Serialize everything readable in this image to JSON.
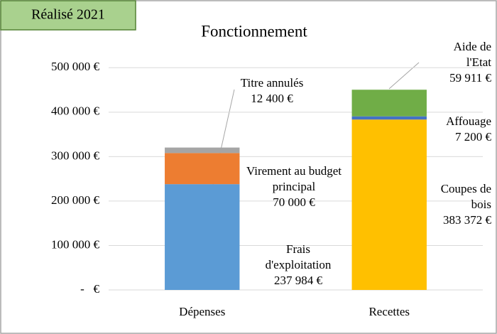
{
  "chart_data": {
    "type": "bar",
    "stacked": true,
    "badge": "Réalisé 2021",
    "title": "Fonctionnement",
    "categories": [
      "Dépenses",
      "Recettes"
    ],
    "series": [
      {
        "name": "Frais d'exploitation",
        "color": "#5b9bd5",
        "values": [
          237984,
          null
        ],
        "value_labels": [
          "237 984 €",
          null
        ]
      },
      {
        "name": "Virement au budget principal",
        "color": "#ed7d31",
        "values": [
          70000,
          null
        ],
        "value_labels": [
          "70 000 €",
          null
        ]
      },
      {
        "name": "Titre annulés",
        "color": "#a5a5a5",
        "values": [
          12400,
          null
        ],
        "value_labels": [
          "12 400 €",
          null
        ]
      },
      {
        "name": "Coupes de bois",
        "color": "#ffc000",
        "values": [
          null,
          383372
        ],
        "value_labels": [
          null,
          "383 372 €"
        ]
      },
      {
        "name": "Affouage",
        "color": "#4472c4",
        "values": [
          null,
          7200
        ],
        "value_labels": [
          null,
          "7 200 €"
        ]
      },
      {
        "name": "Aide de l'Etat",
        "color": "#70ad47",
        "values": [
          null,
          59911
        ],
        "value_labels": [
          null,
          "59 911 €"
        ]
      }
    ],
    "ylim": [
      0,
      550000
    ],
    "yticks": [
      {
        "value": 0,
        "label": "-   €"
      },
      {
        "value": 100000,
        "label": "100 000 €"
      },
      {
        "value": 200000,
        "label": "200 000 €"
      },
      {
        "value": 300000,
        "label": "300 000 €"
      },
      {
        "value": 400000,
        "label": "400 000 €"
      },
      {
        "value": 500000,
        "label": "500 000 €"
      }
    ],
    "grid": true
  }
}
